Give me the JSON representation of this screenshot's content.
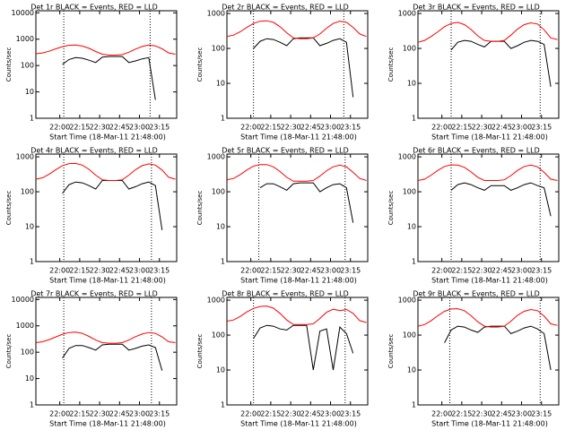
{
  "chart_data": [
    {
      "type": "line",
      "title": "Det 1r BLACK = Events, RED = LLD",
      "xlabel": "Start Time (18-Mar-11 21:48:00)",
      "ylabel": "Counts/sec",
      "log_y": true,
      "x": [
        1302,
        1307,
        1312,
        1317,
        1322,
        1327,
        1332,
        1337,
        1342,
        1347,
        1352,
        1357,
        1362,
        1367,
        1372,
        1377,
        1382,
        1387,
        1392,
        1397,
        1402,
        1407
      ],
      "xlim": [
        1302,
        1408
      ],
      "xticks": [
        {
          "value": 1320,
          "label": "22:00"
        },
        {
          "value": 1335,
          "label": "22:15"
        },
        {
          "value": 1350,
          "label": "22:30"
        },
        {
          "value": 1365,
          "label": "22:45"
        },
        {
          "value": 1380,
          "label": "23:00"
        },
        {
          "value": 1395,
          "label": "23:15"
        }
      ],
      "ylim": [
        1,
        12000
      ],
      "yticks": [
        1,
        10,
        100,
        1000,
        10000
      ],
      "vlines": [
        1323,
        1388
      ],
      "series": [
        {
          "color": "#000000",
          "values": [
            null,
            null,
            null,
            null,
            110,
            170,
            200,
            190,
            160,
            130,
            210,
            220,
            220,
            220,
            130,
            150,
            180,
            200,
            5,
            null,
            null,
            null
          ]
        },
        {
          "color": "#ff0000",
          "values": [
            280,
            300,
            350,
            430,
            520,
            590,
            600,
            550,
            450,
            340,
            270,
            250,
            250,
            260,
            320,
            420,
            530,
            600,
            560,
            430,
            300,
            270
          ]
        }
      ]
    },
    {
      "type": "line",
      "title": "Det 2r BLACK = Events, RED = LLD",
      "xlabel": "Start Time (18-Mar-11 21:48:00)",
      "ylabel": "Counts/sec",
      "log_y": true,
      "x": [
        1302,
        1307,
        1312,
        1317,
        1322,
        1327,
        1332,
        1337,
        1342,
        1347,
        1352,
        1357,
        1362,
        1367,
        1372,
        1377,
        1382,
        1387,
        1392,
        1397,
        1402,
        1407
      ],
      "xlim": [
        1302,
        1408
      ],
      "xticks": [
        {
          "value": 1320,
          "label": "22:00"
        },
        {
          "value": 1335,
          "label": "22:15"
        },
        {
          "value": 1350,
          "label": "22:30"
        },
        {
          "value": 1365,
          "label": "22:45"
        },
        {
          "value": 1380,
          "label": "23:00"
        },
        {
          "value": 1395,
          "label": "23:15"
        }
      ],
      "ylim": [
        1,
        1200
      ],
      "yticks": [
        1,
        10,
        100,
        1000
      ],
      "vlines": [
        1322,
        1390
      ],
      "series": [
        {
          "color": "#000000",
          "values": [
            null,
            null,
            null,
            null,
            100,
            160,
            190,
            180,
            150,
            120,
            190,
            200,
            200,
            200,
            120,
            140,
            170,
            190,
            150,
            4,
            null,
            null
          ]
        },
        {
          "color": "#ff0000",
          "values": [
            220,
            240,
            300,
            400,
            520,
            600,
            620,
            560,
            420,
            280,
            200,
            190,
            190,
            200,
            260,
            380,
            520,
            600,
            560,
            400,
            260,
            220
          ]
        }
      ]
    },
    {
      "type": "line",
      "title": "Det 3r BLACK = Events, RED = LLD",
      "xlabel": "Start Time (18-Mar-11 21:48:00)",
      "ylabel": "Counts/sec",
      "log_y": true,
      "x": [
        1302,
        1307,
        1312,
        1317,
        1322,
        1327,
        1332,
        1337,
        1342,
        1347,
        1352,
        1357,
        1362,
        1367,
        1372,
        1377,
        1382,
        1387,
        1392,
        1397,
        1402,
        1407
      ],
      "xlim": [
        1302,
        1408
      ],
      "xticks": [
        {
          "value": 1320,
          "label": "22:00"
        },
        {
          "value": 1335,
          "label": "22:15"
        },
        {
          "value": 1350,
          "label": "22:30"
        },
        {
          "value": 1365,
          "label": "22:45"
        },
        {
          "value": 1380,
          "label": "23:00"
        },
        {
          "value": 1395,
          "label": "23:15"
        }
      ],
      "ylim": [
        1,
        1200
      ],
      "yticks": [
        1,
        10,
        100,
        1000
      ],
      "vlines": [
        1327,
        1394
      ],
      "series": [
        {
          "color": "#000000",
          "values": [
            null,
            null,
            null,
            null,
            null,
            90,
            150,
            170,
            160,
            130,
            110,
            160,
            160,
            160,
            100,
            120,
            150,
            170,
            160,
            130,
            8,
            null
          ]
        },
        {
          "color": "#ff0000",
          "values": [
            150,
            170,
            220,
            300,
            420,
            520,
            560,
            480,
            350,
            230,
            170,
            160,
            160,
            170,
            240,
            360,
            480,
            540,
            500,
            340,
            200,
            180
          ]
        }
      ]
    },
    {
      "type": "line",
      "title": "Det 4r BLACK = Events, RED = LLD",
      "xlabel": "Start Time (18-Mar-11 21:48:00)",
      "ylabel": "Counts/sec",
      "log_y": true,
      "x": [
        1302,
        1307,
        1312,
        1317,
        1322,
        1327,
        1332,
        1337,
        1342,
        1347,
        1352,
        1357,
        1362,
        1367,
        1372,
        1377,
        1382,
        1387,
        1392,
        1397,
        1402,
        1407
      ],
      "xlim": [
        1302,
        1408
      ],
      "xticks": [
        {
          "value": 1320,
          "label": "22:00"
        },
        {
          "value": 1335,
          "label": "22:15"
        },
        {
          "value": 1350,
          "label": "22:30"
        },
        {
          "value": 1365,
          "label": "22:45"
        },
        {
          "value": 1380,
          "label": "23:00"
        },
        {
          "value": 1395,
          "label": "23:15"
        }
      ],
      "ylim": [
        1,
        1200
      ],
      "yticks": [
        1,
        10,
        100,
        1000
      ],
      "vlines": [
        1323,
        1389
      ],
      "series": [
        {
          "color": "#000000",
          "values": [
            null,
            null,
            null,
            null,
            90,
            160,
            190,
            180,
            150,
            120,
            210,
            210,
            210,
            210,
            120,
            140,
            170,
            190,
            150,
            8,
            null,
            null
          ]
        },
        {
          "color": "#ff0000",
          "values": [
            230,
            250,
            320,
            430,
            560,
            640,
            650,
            580,
            440,
            300,
            220,
            210,
            210,
            220,
            300,
            430,
            560,
            630,
            580,
            420,
            260,
            230
          ]
        }
      ]
    },
    {
      "type": "line",
      "title": "Det 5r BLACK = Events, RED = LLD",
      "xlabel": "Start Time (18-Mar-11 21:48:00)",
      "ylabel": "Counts/sec",
      "log_y": true,
      "x": [
        1302,
        1307,
        1312,
        1317,
        1322,
        1327,
        1332,
        1337,
        1342,
        1347,
        1352,
        1357,
        1362,
        1367,
        1372,
        1377,
        1382,
        1387,
        1392,
        1397,
        1402,
        1407
      ],
      "xlim": [
        1302,
        1408
      ],
      "xticks": [
        {
          "value": 1320,
          "label": "22:00"
        },
        {
          "value": 1335,
          "label": "22:15"
        },
        {
          "value": 1350,
          "label": "22:30"
        },
        {
          "value": 1365,
          "label": "22:45"
        },
        {
          "value": 1380,
          "label": "23:00"
        },
        {
          "value": 1395,
          "label": "23:15"
        }
      ],
      "ylim": [
        1,
        1200
      ],
      "yticks": [
        1,
        10,
        100,
        1000
      ],
      "vlines": [
        1326,
        1391
      ],
      "series": [
        {
          "color": "#000000",
          "values": [
            null,
            null,
            null,
            null,
            null,
            130,
            170,
            170,
            140,
            110,
            170,
            180,
            180,
            180,
            100,
            130,
            160,
            170,
            130,
            13,
            null,
            null
          ]
        },
        {
          "color": "#ff0000",
          "values": [
            220,
            240,
            310,
            420,
            540,
            600,
            600,
            520,
            380,
            260,
            200,
            200,
            200,
            210,
            280,
            400,
            520,
            580,
            520,
            360,
            240,
            210
          ]
        }
      ]
    },
    {
      "type": "line",
      "title": "Det 6r BLACK = Events, RED = LLD",
      "xlabel": "Start Time (18-Mar-11 21:48:00)",
      "ylabel": "Counts/sec",
      "log_y": true,
      "x": [
        1302,
        1307,
        1312,
        1317,
        1322,
        1327,
        1332,
        1337,
        1342,
        1347,
        1352,
        1357,
        1362,
        1367,
        1372,
        1377,
        1382,
        1387,
        1392,
        1397,
        1402,
        1407
      ],
      "xlim": [
        1302,
        1408
      ],
      "xticks": [
        {
          "value": 1320,
          "label": "22:00"
        },
        {
          "value": 1335,
          "label": "22:15"
        },
        {
          "value": 1350,
          "label": "22:30"
        },
        {
          "value": 1365,
          "label": "22:45"
        },
        {
          "value": 1380,
          "label": "23:00"
        },
        {
          "value": 1395,
          "label": "23:15"
        }
      ],
      "ylim": [
        1,
        1200
      ],
      "yticks": [
        1,
        10,
        100,
        1000
      ],
      "vlines": [
        1327,
        1394
      ],
      "series": [
        {
          "color": "#000000",
          "values": [
            null,
            null,
            null,
            null,
            null,
            110,
            160,
            180,
            160,
            130,
            110,
            150,
            150,
            150,
            110,
            130,
            160,
            180,
            150,
            130,
            20,
            null
          ]
        },
        {
          "color": "#ff0000",
          "values": [
            210,
            230,
            300,
            410,
            530,
            590,
            580,
            500,
            370,
            260,
            210,
            210,
            210,
            220,
            290,
            410,
            530,
            580,
            520,
            360,
            230,
            210
          ]
        }
      ]
    },
    {
      "type": "line",
      "title": "Det 7r BLACK = Events, RED = LLD",
      "xlabel": "Start Time (18-Mar-11 21:48:00)",
      "ylabel": "Counts/sec",
      "log_y": true,
      "x": [
        1302,
        1307,
        1312,
        1317,
        1322,
        1327,
        1332,
        1337,
        1342,
        1347,
        1352,
        1357,
        1362,
        1367,
        1372,
        1377,
        1382,
        1387,
        1392,
        1397,
        1402,
        1407
      ],
      "xlim": [
        1302,
        1408
      ],
      "xticks": [
        {
          "value": 1320,
          "label": "22:00"
        },
        {
          "value": 1335,
          "label": "22:15"
        },
        {
          "value": 1350,
          "label": "22:30"
        },
        {
          "value": 1365,
          "label": "22:45"
        },
        {
          "value": 1380,
          "label": "23:00"
        },
        {
          "value": 1395,
          "label": "23:15"
        }
      ],
      "ylim": [
        1,
        12000
      ],
      "yticks": [
        1,
        10,
        100,
        1000,
        10000
      ],
      "vlines": [
        1323,
        1389
      ],
      "series": [
        {
          "color": "#000000",
          "values": [
            null,
            null,
            null,
            null,
            60,
            140,
            180,
            180,
            150,
            120,
            190,
            200,
            200,
            200,
            120,
            140,
            170,
            190,
            150,
            20,
            null,
            null
          ]
        },
        {
          "color": "#ff0000",
          "values": [
            230,
            250,
            300,
            380,
            480,
            560,
            580,
            520,
            400,
            290,
            230,
            220,
            220,
            230,
            290,
            390,
            490,
            560,
            520,
            380,
            250,
            230
          ]
        }
      ]
    },
    {
      "type": "line",
      "title": "Det 8r BLACK = Events, RED = LLD",
      "xlabel": "Start Time (18-Mar-11 21:48:00)",
      "ylabel": "Counts/sec",
      "log_y": true,
      "x": [
        1302,
        1307,
        1312,
        1317,
        1322,
        1327,
        1332,
        1337,
        1342,
        1347,
        1352,
        1357,
        1362,
        1367,
        1372,
        1377,
        1382,
        1387,
        1392,
        1397,
        1402,
        1407
      ],
      "xlim": [
        1302,
        1408
      ],
      "xticks": [
        {
          "value": 1320,
          "label": "22:00"
        },
        {
          "value": 1335,
          "label": "22:15"
        },
        {
          "value": 1350,
          "label": "22:30"
        },
        {
          "value": 1365,
          "label": "22:45"
        },
        {
          "value": 1380,
          "label": "23:00"
        },
        {
          "value": 1395,
          "label": "23:15"
        }
      ],
      "ylim": [
        1,
        1200
      ],
      "yticks": [
        1,
        10,
        100,
        1000
      ],
      "vlines": [
        1322,
        1391
      ],
      "series": [
        {
          "color": "#000000",
          "values": [
            null,
            null,
            null,
            null,
            80,
            160,
            190,
            180,
            150,
            140,
            190,
            190,
            190,
            10,
            130,
            150,
            10,
            170,
            110,
            30,
            null,
            null
          ]
        },
        {
          "color": "#ff0000",
          "values": [
            250,
            270,
            340,
            460,
            580,
            660,
            680,
            590,
            420,
            270,
            200,
            200,
            200,
            210,
            300,
            450,
            550,
            500,
            540,
            420,
            260,
            230
          ]
        }
      ]
    },
    {
      "type": "line",
      "title": "Det 9r BLACK = Events, RED = LLD",
      "xlabel": "Start Time (18-Mar-11 21:48:00)",
      "ylabel": "Counts/sec",
      "log_y": true,
      "x": [
        1302,
        1307,
        1312,
        1317,
        1322,
        1327,
        1332,
        1337,
        1342,
        1347,
        1352,
        1357,
        1362,
        1367,
        1372,
        1377,
        1382,
        1387,
        1392,
        1397,
        1402,
        1407
      ],
      "xlim": [
        1302,
        1408
      ],
      "xticks": [
        {
          "value": 1320,
          "label": "22:00"
        },
        {
          "value": 1335,
          "label": "22:15"
        },
        {
          "value": 1350,
          "label": "22:30"
        },
        {
          "value": 1365,
          "label": "22:45"
        },
        {
          "value": 1380,
          "label": "23:00"
        },
        {
          "value": 1395,
          "label": "23:15"
        }
      ],
      "ylim": [
        1,
        1200
      ],
      "yticks": [
        1,
        10,
        100,
        1000
      ],
      "vlines": [
        1326,
        1394
      ],
      "series": [
        {
          "color": "#000000",
          "values": [
            null,
            null,
            null,
            null,
            60,
            140,
            180,
            170,
            140,
            120,
            170,
            180,
            180,
            180,
            110,
            130,
            160,
            180,
            150,
            110,
            10,
            null
          ]
        },
        {
          "color": "#ff0000",
          "values": [
            180,
            200,
            260,
            360,
            480,
            560,
            570,
            500,
            360,
            240,
            180,
            170,
            170,
            180,
            250,
            370,
            480,
            540,
            500,
            350,
            210,
            190
          ]
        }
      ]
    }
  ]
}
